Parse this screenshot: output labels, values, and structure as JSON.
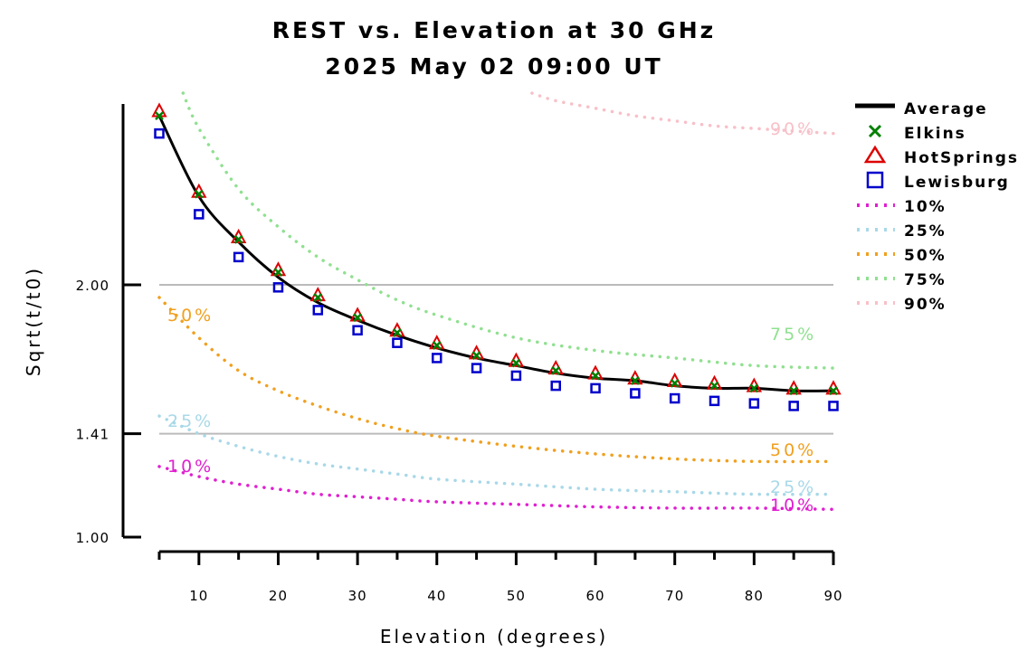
{
  "chart_data": {
    "type": "line",
    "title": "REST vs. Elevation at 30 GHz",
    "subtitle": "2025 May 02 09:00 UT",
    "xlabel": "Elevation (degrees)",
    "ylabel": "Sqrt(t/t0)",
    "xlim": [
      5,
      90
    ],
    "ylim": [
      1.0,
      2.76
    ],
    "x_ticks": [
      10,
      20,
      30,
      40,
      50,
      60,
      70,
      80,
      90
    ],
    "x_tick_labels": [
      "10",
      "20",
      "30",
      "40",
      "50",
      "60",
      "70",
      "80",
      "90"
    ],
    "y_ticks": [
      1.0,
      1.41,
      2.0
    ],
    "y_tick_labels": [
      "1.00",
      "1.41",
      "2.00"
    ],
    "grid_y": [
      1.41,
      2.0
    ],
    "legend": "top-right",
    "series": [
      {
        "name": "Average",
        "kind": "line",
        "color": "#000000",
        "x": [
          5,
          10,
          15,
          20,
          25,
          30,
          35,
          40,
          45,
          50,
          55,
          60,
          65,
          70,
          75,
          80,
          85,
          90
        ],
        "y": [
          2.67,
          2.35,
          2.17,
          2.03,
          1.93,
          1.86,
          1.8,
          1.75,
          1.71,
          1.68,
          1.65,
          1.63,
          1.62,
          1.6,
          1.59,
          1.59,
          1.58,
          1.58
        ]
      },
      {
        "name": "Elkins",
        "kind": "x-marker",
        "color": "#008000",
        "x": [
          5,
          10,
          15,
          20,
          25,
          30,
          35,
          40,
          45,
          50,
          55,
          60,
          65,
          70,
          75,
          80,
          85,
          90
        ],
        "y": [
          2.67,
          2.36,
          2.18,
          2.05,
          1.95,
          1.87,
          1.81,
          1.76,
          1.72,
          1.69,
          1.66,
          1.64,
          1.62,
          1.61,
          1.6,
          1.59,
          1.58,
          1.58
        ]
      },
      {
        "name": "HotSprings",
        "kind": "triangle",
        "color": "#dd0000",
        "x": [
          5,
          10,
          15,
          20,
          25,
          30,
          35,
          40,
          45,
          50,
          55,
          60,
          65,
          70,
          75,
          80,
          85,
          90
        ],
        "y": [
          2.69,
          2.37,
          2.19,
          2.06,
          1.96,
          1.88,
          1.82,
          1.77,
          1.73,
          1.7,
          1.67,
          1.65,
          1.63,
          1.62,
          1.61,
          1.6,
          1.59,
          1.59
        ]
      },
      {
        "name": "Lewisburg",
        "kind": "square",
        "color": "#0000cc",
        "x": [
          5,
          10,
          15,
          20,
          25,
          30,
          35,
          40,
          45,
          50,
          55,
          60,
          65,
          70,
          75,
          80,
          85,
          90
        ],
        "y": [
          2.6,
          2.28,
          2.11,
          1.99,
          1.9,
          1.82,
          1.77,
          1.71,
          1.67,
          1.64,
          1.6,
          1.59,
          1.57,
          1.55,
          1.54,
          1.53,
          1.52,
          1.52
        ]
      },
      {
        "name": "10%",
        "kind": "dotted",
        "color": "#e020d0",
        "label": "10%",
        "x": [
          5,
          10,
          15,
          20,
          25,
          30,
          35,
          40,
          50,
          60,
          70,
          80,
          90
        ],
        "y": [
          1.28,
          1.24,
          1.21,
          1.19,
          1.17,
          1.16,
          1.15,
          1.14,
          1.13,
          1.12,
          1.115,
          1.115,
          1.11
        ]
      },
      {
        "name": "25%",
        "kind": "dotted",
        "color": "#a8d8e8",
        "label": "25%",
        "x": [
          5,
          10,
          15,
          20,
          25,
          30,
          35,
          40,
          50,
          60,
          70,
          80,
          90
        ],
        "y": [
          1.48,
          1.41,
          1.36,
          1.32,
          1.29,
          1.27,
          1.25,
          1.23,
          1.21,
          1.19,
          1.18,
          1.17,
          1.17
        ]
      },
      {
        "name": "50%",
        "kind": "dotted",
        "color": "#f0a020",
        "label": "50%",
        "x": [
          5,
          10,
          15,
          20,
          25,
          30,
          35,
          40,
          50,
          60,
          70,
          80,
          90
        ],
        "y": [
          1.95,
          1.79,
          1.66,
          1.58,
          1.52,
          1.47,
          1.43,
          1.4,
          1.36,
          1.33,
          1.31,
          1.3,
          1.3
        ]
      },
      {
        "name": "75%",
        "kind": "dotted",
        "color": "#90e090",
        "label": "75%",
        "x": [
          8,
          10,
          15,
          20,
          25,
          30,
          35,
          40,
          50,
          60,
          70,
          80,
          90
        ],
        "y": [
          2.76,
          2.62,
          2.38,
          2.23,
          2.11,
          2.02,
          1.94,
          1.88,
          1.79,
          1.74,
          1.71,
          1.68,
          1.67
        ]
      },
      {
        "name": "90%",
        "kind": "dotted",
        "color": "#f8c0c8",
        "label": "90%",
        "x": [
          52,
          55,
          60,
          65,
          70,
          75,
          80,
          85,
          90
        ],
        "y": [
          2.76,
          2.73,
          2.7,
          2.67,
          2.65,
          2.63,
          2.62,
          2.61,
          2.6
        ]
      }
    ]
  }
}
